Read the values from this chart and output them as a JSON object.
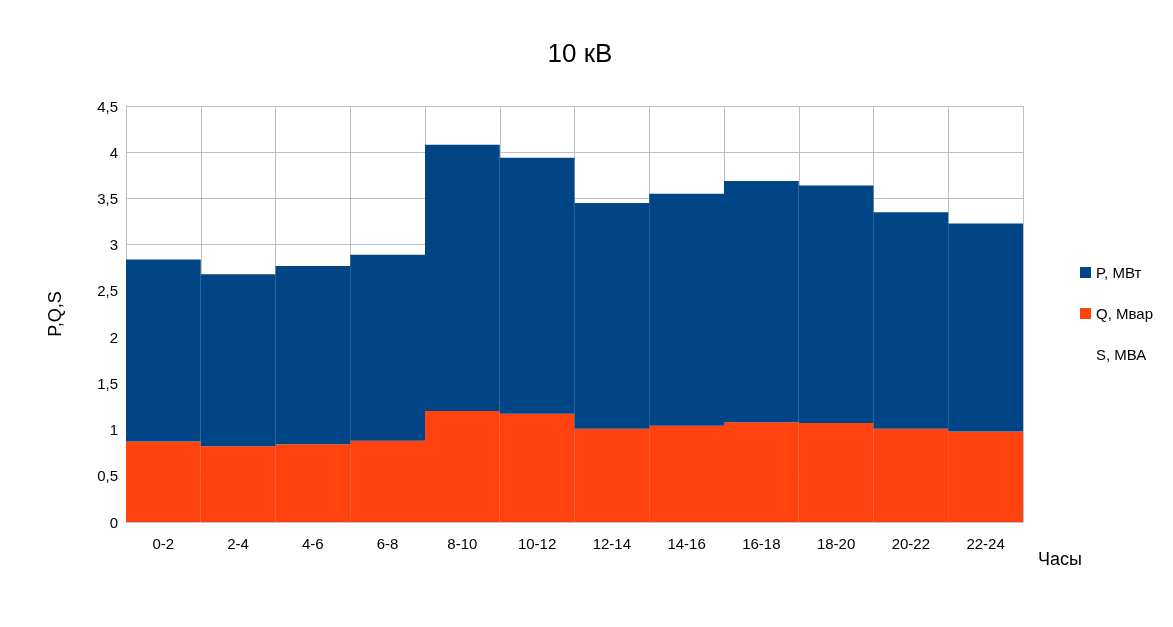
{
  "chart_data": {
    "type": "bar",
    "title": "10 кВ",
    "xlabel": "Часы",
    "ylabel": "P,Q,S",
    "stacked": true,
    "categories": [
      "0-2",
      "2-4",
      "4-6",
      "6-8",
      "8-10",
      "10-12",
      "12-14",
      "14-16",
      "16-18",
      "18-20",
      "20-22",
      "22-24"
    ],
    "series": [
      {
        "name": "Q, Мвар",
        "color": "#ff420e",
        "values": [
          0.87,
          0.82,
          0.84,
          0.88,
          1.2,
          1.17,
          1.01,
          1.04,
          1.08,
          1.07,
          1.01,
          0.98
        ]
      },
      {
        "name": "P, МВт",
        "color": "#004586",
        "values": [
          1.97,
          1.86,
          1.93,
          2.01,
          2.88,
          2.77,
          2.44,
          2.51,
          2.61,
          2.57,
          2.34,
          2.25
        ]
      },
      {
        "name": "S, МВА",
        "values": [
          null,
          null,
          null,
          null,
          null,
          null,
          null,
          null,
          null,
          null,
          null,
          null
        ]
      }
    ],
    "ylim": [
      0,
      4.5
    ],
    "yticks": [
      0,
      {
        "value": 0.5,
        "label": "0,5"
      },
      1,
      {
        "value": 1.5,
        "label": "1,5"
      },
      2,
      {
        "value": 2.5,
        "label": "2,5"
      },
      3,
      {
        "value": 3.5,
        "label": "3,5"
      },
      4,
      {
        "value": 4.5,
        "label": "4,5"
      }
    ],
    "grid": true,
    "legend": "right"
  }
}
